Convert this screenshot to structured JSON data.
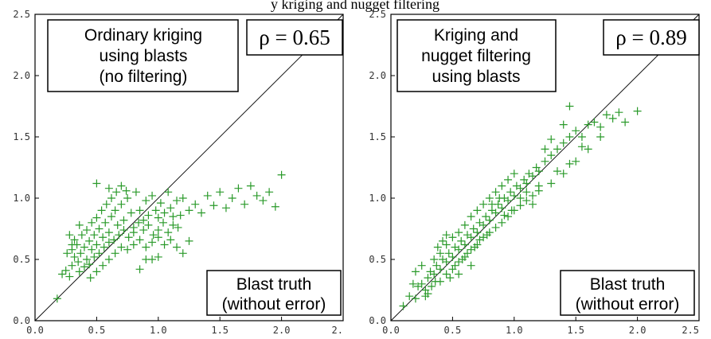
{
  "header_fragment": "y kriging and nugget filtering",
  "colors": {
    "points": "#2a9a2a",
    "frame": "#000000",
    "box_border": "#000000"
  },
  "chart_data": [
    {
      "type": "scatter",
      "xlim": [
        0,
        2.5
      ],
      "ylim": [
        0,
        2.5
      ],
      "x_ticks": [
        "0.0",
        "0.5",
        "1.0",
        "1.5",
        "2.0",
        "2."
      ],
      "y_ticks": [
        "0.0",
        "0.5",
        "1.0",
        "1.5",
        "2.0",
        "2.5"
      ],
      "reference_line": "y = x",
      "grid": false,
      "marker": "plus",
      "annotation_lines": [
        "Ordinary kriging",
        "using blasts",
        "(no filtering)"
      ],
      "rho_label": "ρ = 0.65",
      "corner_lines": [
        "Blast truth",
        "(without error)"
      ],
      "points": [
        [
          0.18,
          0.18
        ],
        [
          0.22,
          0.38
        ],
        [
          0.25,
          0.41
        ],
        [
          0.28,
          0.36
        ],
        [
          0.3,
          0.45
        ],
        [
          0.32,
          0.52
        ],
        [
          0.35,
          0.48
        ],
        [
          0.37,
          0.55
        ],
        [
          0.4,
          0.6
        ],
        [
          0.42,
          0.5
        ],
        [
          0.44,
          0.65
        ],
        [
          0.46,
          0.58
        ],
        [
          0.48,
          0.7
        ],
        [
          0.5,
          0.62
        ],
        [
          0.52,
          0.75
        ],
        [
          0.55,
          0.68
        ],
        [
          0.57,
          0.8
        ],
        [
          0.6,
          0.72
        ],
        [
          0.62,
          0.85
        ],
        [
          0.65,
          0.9
        ],
        [
          0.67,
          0.78
        ],
        [
          0.7,
          0.95
        ],
        [
          0.72,
          0.82
        ],
        [
          0.75,
          1.0
        ],
        [
          0.78,
          0.88
        ],
        [
          0.8,
          0.76
        ],
        [
          0.82,
          1.05
        ],
        [
          0.85,
          0.9
        ],
        [
          0.88,
          0.82
        ],
        [
          0.9,
          0.98
        ],
        [
          0.92,
          0.86
        ],
        [
          0.95,
          1.02
        ],
        [
          0.98,
          0.9
        ],
        [
          1.0,
          0.84
        ],
        [
          1.02,
          0.96
        ],
        [
          1.05,
          0.88
        ],
        [
          1.08,
          1.05
        ],
        [
          1.1,
          0.92
        ],
        [
          1.12,
          0.78
        ],
        [
          1.15,
          0.98
        ],
        [
          1.18,
          0.86
        ],
        [
          1.2,
          1.0
        ],
        [
          1.25,
          0.9
        ],
        [
          1.3,
          0.95
        ],
        [
          1.35,
          0.88
        ],
        [
          1.4,
          1.02
        ],
        [
          1.45,
          0.94
        ],
        [
          1.5,
          1.05
        ],
        [
          1.55,
          0.92
        ],
        [
          1.6,
          1.0
        ],
        [
          1.65,
          1.08
        ],
        [
          1.7,
          0.95
        ],
        [
          1.75,
          1.1
        ],
        [
          1.8,
          1.02
        ],
        [
          1.85,
          0.98
        ],
        [
          1.9,
          1.05
        ],
        [
          1.95,
          0.93
        ],
        [
          2.0,
          1.19
        ],
        [
          0.3,
          0.58
        ],
        [
          0.34,
          0.62
        ],
        [
          0.38,
          0.7
        ],
        [
          0.42,
          0.74
        ],
        [
          0.46,
          0.8
        ],
        [
          0.5,
          0.84
        ],
        [
          0.54,
          0.9
        ],
        [
          0.58,
          0.95
        ],
        [
          0.62,
          1.0
        ],
        [
          0.66,
          1.05
        ],
        [
          0.7,
          1.1
        ],
        [
          0.74,
          1.06
        ],
        [
          0.5,
          1.12
        ],
        [
          0.6,
          1.08
        ],
        [
          0.36,
          0.4
        ],
        [
          0.4,
          0.44
        ],
        [
          0.44,
          0.46
        ],
        [
          0.48,
          0.52
        ],
        [
          0.52,
          0.55
        ],
        [
          0.56,
          0.6
        ],
        [
          0.6,
          0.64
        ],
        [
          0.64,
          0.66
        ],
        [
          0.68,
          0.7
        ],
        [
          0.72,
          0.74
        ],
        [
          0.76,
          0.68
        ],
        [
          0.8,
          0.72
        ],
        [
          0.84,
          0.8
        ],
        [
          0.88,
          0.74
        ],
        [
          0.92,
          0.78
        ],
        [
          0.96,
          0.7
        ],
        [
          1.0,
          0.74
        ],
        [
          1.04,
          0.8
        ],
        [
          1.08,
          0.72
        ],
        [
          1.12,
          0.85
        ],
        [
          1.16,
          0.76
        ],
        [
          0.45,
          0.35
        ],
        [
          0.5,
          0.4
        ],
        [
          0.55,
          0.45
        ],
        [
          0.6,
          0.5
        ],
        [
          0.65,
          0.55
        ],
        [
          0.7,
          0.6
        ],
        [
          0.75,
          0.58
        ],
        [
          0.8,
          0.62
        ],
        [
          0.85,
          0.66
        ],
        [
          0.9,
          0.6
        ],
        [
          0.95,
          0.64
        ],
        [
          1.0,
          0.68
        ],
        [
          1.05,
          0.62
        ],
        [
          1.1,
          0.66
        ],
        [
          1.15,
          0.6
        ],
        [
          1.2,
          0.55
        ],
        [
          1.25,
          0.65
        ],
        [
          0.85,
          0.42
        ],
        [
          0.9,
          0.5
        ],
        [
          0.95,
          0.5
        ],
        [
          1.0,
          0.52
        ],
        [
          0.28,
          0.7
        ],
        [
          0.32,
          0.66
        ],
        [
          0.36,
          0.78
        ],
        [
          0.26,
          0.55
        ],
        [
          0.3,
          0.62
        ]
      ]
    },
    {
      "type": "scatter",
      "xlim": [
        0,
        2.5
      ],
      "ylim": [
        0,
        2.5
      ],
      "x_ticks": [
        "0.0",
        "0.5",
        "1.0",
        "1.5",
        "2.0",
        "2.5"
      ],
      "y_ticks": [
        "0.0",
        "0.5",
        "1.0",
        "1.5",
        "2.0",
        "2.5"
      ],
      "reference_line": "y = x",
      "grid": false,
      "marker": "plus",
      "annotation_lines": [
        "Kriging and",
        "nugget  filtering",
        "using blasts"
      ],
      "rho_label": "ρ = 0.89",
      "corner_lines": [
        "Blast truth",
        "(without error)"
      ],
      "points": [
        [
          0.1,
          0.12
        ],
        [
          0.15,
          0.2
        ],
        [
          0.2,
          0.18
        ],
        [
          0.22,
          0.28
        ],
        [
          0.25,
          0.3
        ],
        [
          0.28,
          0.25
        ],
        [
          0.3,
          0.35
        ],
        [
          0.32,
          0.4
        ],
        [
          0.35,
          0.38
        ],
        [
          0.37,
          0.45
        ],
        [
          0.4,
          0.42
        ],
        [
          0.42,
          0.5
        ],
        [
          0.45,
          0.48
        ],
        [
          0.47,
          0.55
        ],
        [
          0.5,
          0.52
        ],
        [
          0.52,
          0.6
        ],
        [
          0.55,
          0.58
        ],
        [
          0.57,
          0.65
        ],
        [
          0.6,
          0.62
        ],
        [
          0.62,
          0.7
        ],
        [
          0.65,
          0.68
        ],
        [
          0.67,
          0.75
        ],
        [
          0.7,
          0.72
        ],
        [
          0.72,
          0.8
        ],
        [
          0.75,
          0.78
        ],
        [
          0.77,
          0.85
        ],
        [
          0.8,
          0.82
        ],
        [
          0.82,
          0.9
        ],
        [
          0.85,
          0.88
        ],
        [
          0.87,
          0.95
        ],
        [
          0.9,
          0.92
        ],
        [
          0.92,
          1.0
        ],
        [
          0.95,
          0.98
        ],
        [
          0.97,
          1.05
        ],
        [
          1.0,
          1.02
        ],
        [
          1.02,
          1.1
        ],
        [
          1.05,
          1.08
        ],
        [
          1.08,
          1.15
        ],
        [
          1.1,
          1.12
        ],
        [
          1.12,
          1.2
        ],
        [
          1.15,
          1.18
        ],
        [
          1.18,
          1.25
        ],
        [
          1.2,
          1.22
        ],
        [
          1.25,
          1.3
        ],
        [
          1.3,
          1.35
        ],
        [
          1.35,
          1.4
        ],
        [
          1.4,
          1.45
        ],
        [
          1.45,
          1.5
        ],
        [
          1.5,
          1.55
        ],
        [
          1.55,
          1.5
        ],
        [
          1.6,
          1.6
        ],
        [
          1.65,
          1.62
        ],
        [
          1.7,
          1.58
        ],
        [
          1.75,
          1.68
        ],
        [
          1.8,
          1.65
        ],
        [
          1.85,
          1.7
        ],
        [
          1.9,
          1.62
        ],
        [
          2.0,
          1.71
        ],
        [
          1.45,
          1.75
        ],
        [
          1.4,
          1.6
        ],
        [
          1.3,
          1.48
        ],
        [
          1.25,
          1.4
        ],
        [
          0.35,
          0.5
        ],
        [
          0.4,
          0.55
        ],
        [
          0.45,
          0.62
        ],
        [
          0.5,
          0.68
        ],
        [
          0.55,
          0.72
        ],
        [
          0.6,
          0.78
        ],
        [
          0.65,
          0.85
        ],
        [
          0.7,
          0.9
        ],
        [
          0.75,
          0.95
        ],
        [
          0.8,
          1.0
        ],
        [
          0.85,
          1.05
        ],
        [
          0.9,
          1.1
        ],
        [
          0.95,
          1.15
        ],
        [
          1.0,
          1.2
        ],
        [
          0.4,
          0.32
        ],
        [
          0.45,
          0.38
        ],
        [
          0.5,
          0.42
        ],
        [
          0.55,
          0.48
        ],
        [
          0.6,
          0.52
        ],
        [
          0.65,
          0.58
        ],
        [
          0.7,
          0.62
        ],
        [
          0.75,
          0.68
        ],
        [
          0.8,
          0.72
        ],
        [
          0.85,
          0.76
        ],
        [
          0.9,
          0.8
        ],
        [
          0.95,
          0.85
        ],
        [
          1.0,
          0.9
        ],
        [
          1.05,
          0.94
        ],
        [
          1.1,
          0.98
        ],
        [
          1.15,
          1.02
        ],
        [
          1.2,
          1.06
        ],
        [
          1.3,
          1.12
        ],
        [
          1.4,
          1.2
        ],
        [
          1.5,
          1.3
        ],
        [
          1.6,
          1.4
        ],
        [
          0.18,
          0.3
        ],
        [
          0.2,
          0.4
        ],
        [
          0.25,
          0.45
        ],
        [
          0.28,
          0.2
        ],
        [
          0.3,
          0.22
        ],
        [
          0.33,
          0.28
        ],
        [
          0.36,
          0.32
        ],
        [
          0.38,
          0.6
        ],
        [
          0.42,
          0.65
        ],
        [
          0.45,
          0.7
        ],
        [
          0.48,
          0.35
        ],
        [
          0.52,
          0.45
        ],
        [
          0.58,
          0.5
        ],
        [
          0.62,
          0.55
        ],
        [
          0.68,
          0.6
        ],
        [
          0.72,
          0.66
        ],
        [
          0.78,
          0.7
        ],
        [
          0.82,
          0.95
        ],
        [
          0.88,
          1.0
        ],
        [
          0.92,
          0.86
        ],
        [
          0.98,
          0.9
        ],
        [
          1.05,
          1.0
        ],
        [
          1.1,
          1.05
        ],
        [
          1.15,
          0.95
        ],
        [
          1.2,
          1.1
        ],
        [
          1.35,
          1.22
        ],
        [
          1.45,
          1.28
        ],
        [
          1.55,
          1.42
        ],
        [
          1.7,
          1.5
        ],
        [
          0.55,
          0.38
        ],
        [
          0.65,
          0.45
        ]
      ]
    }
  ]
}
